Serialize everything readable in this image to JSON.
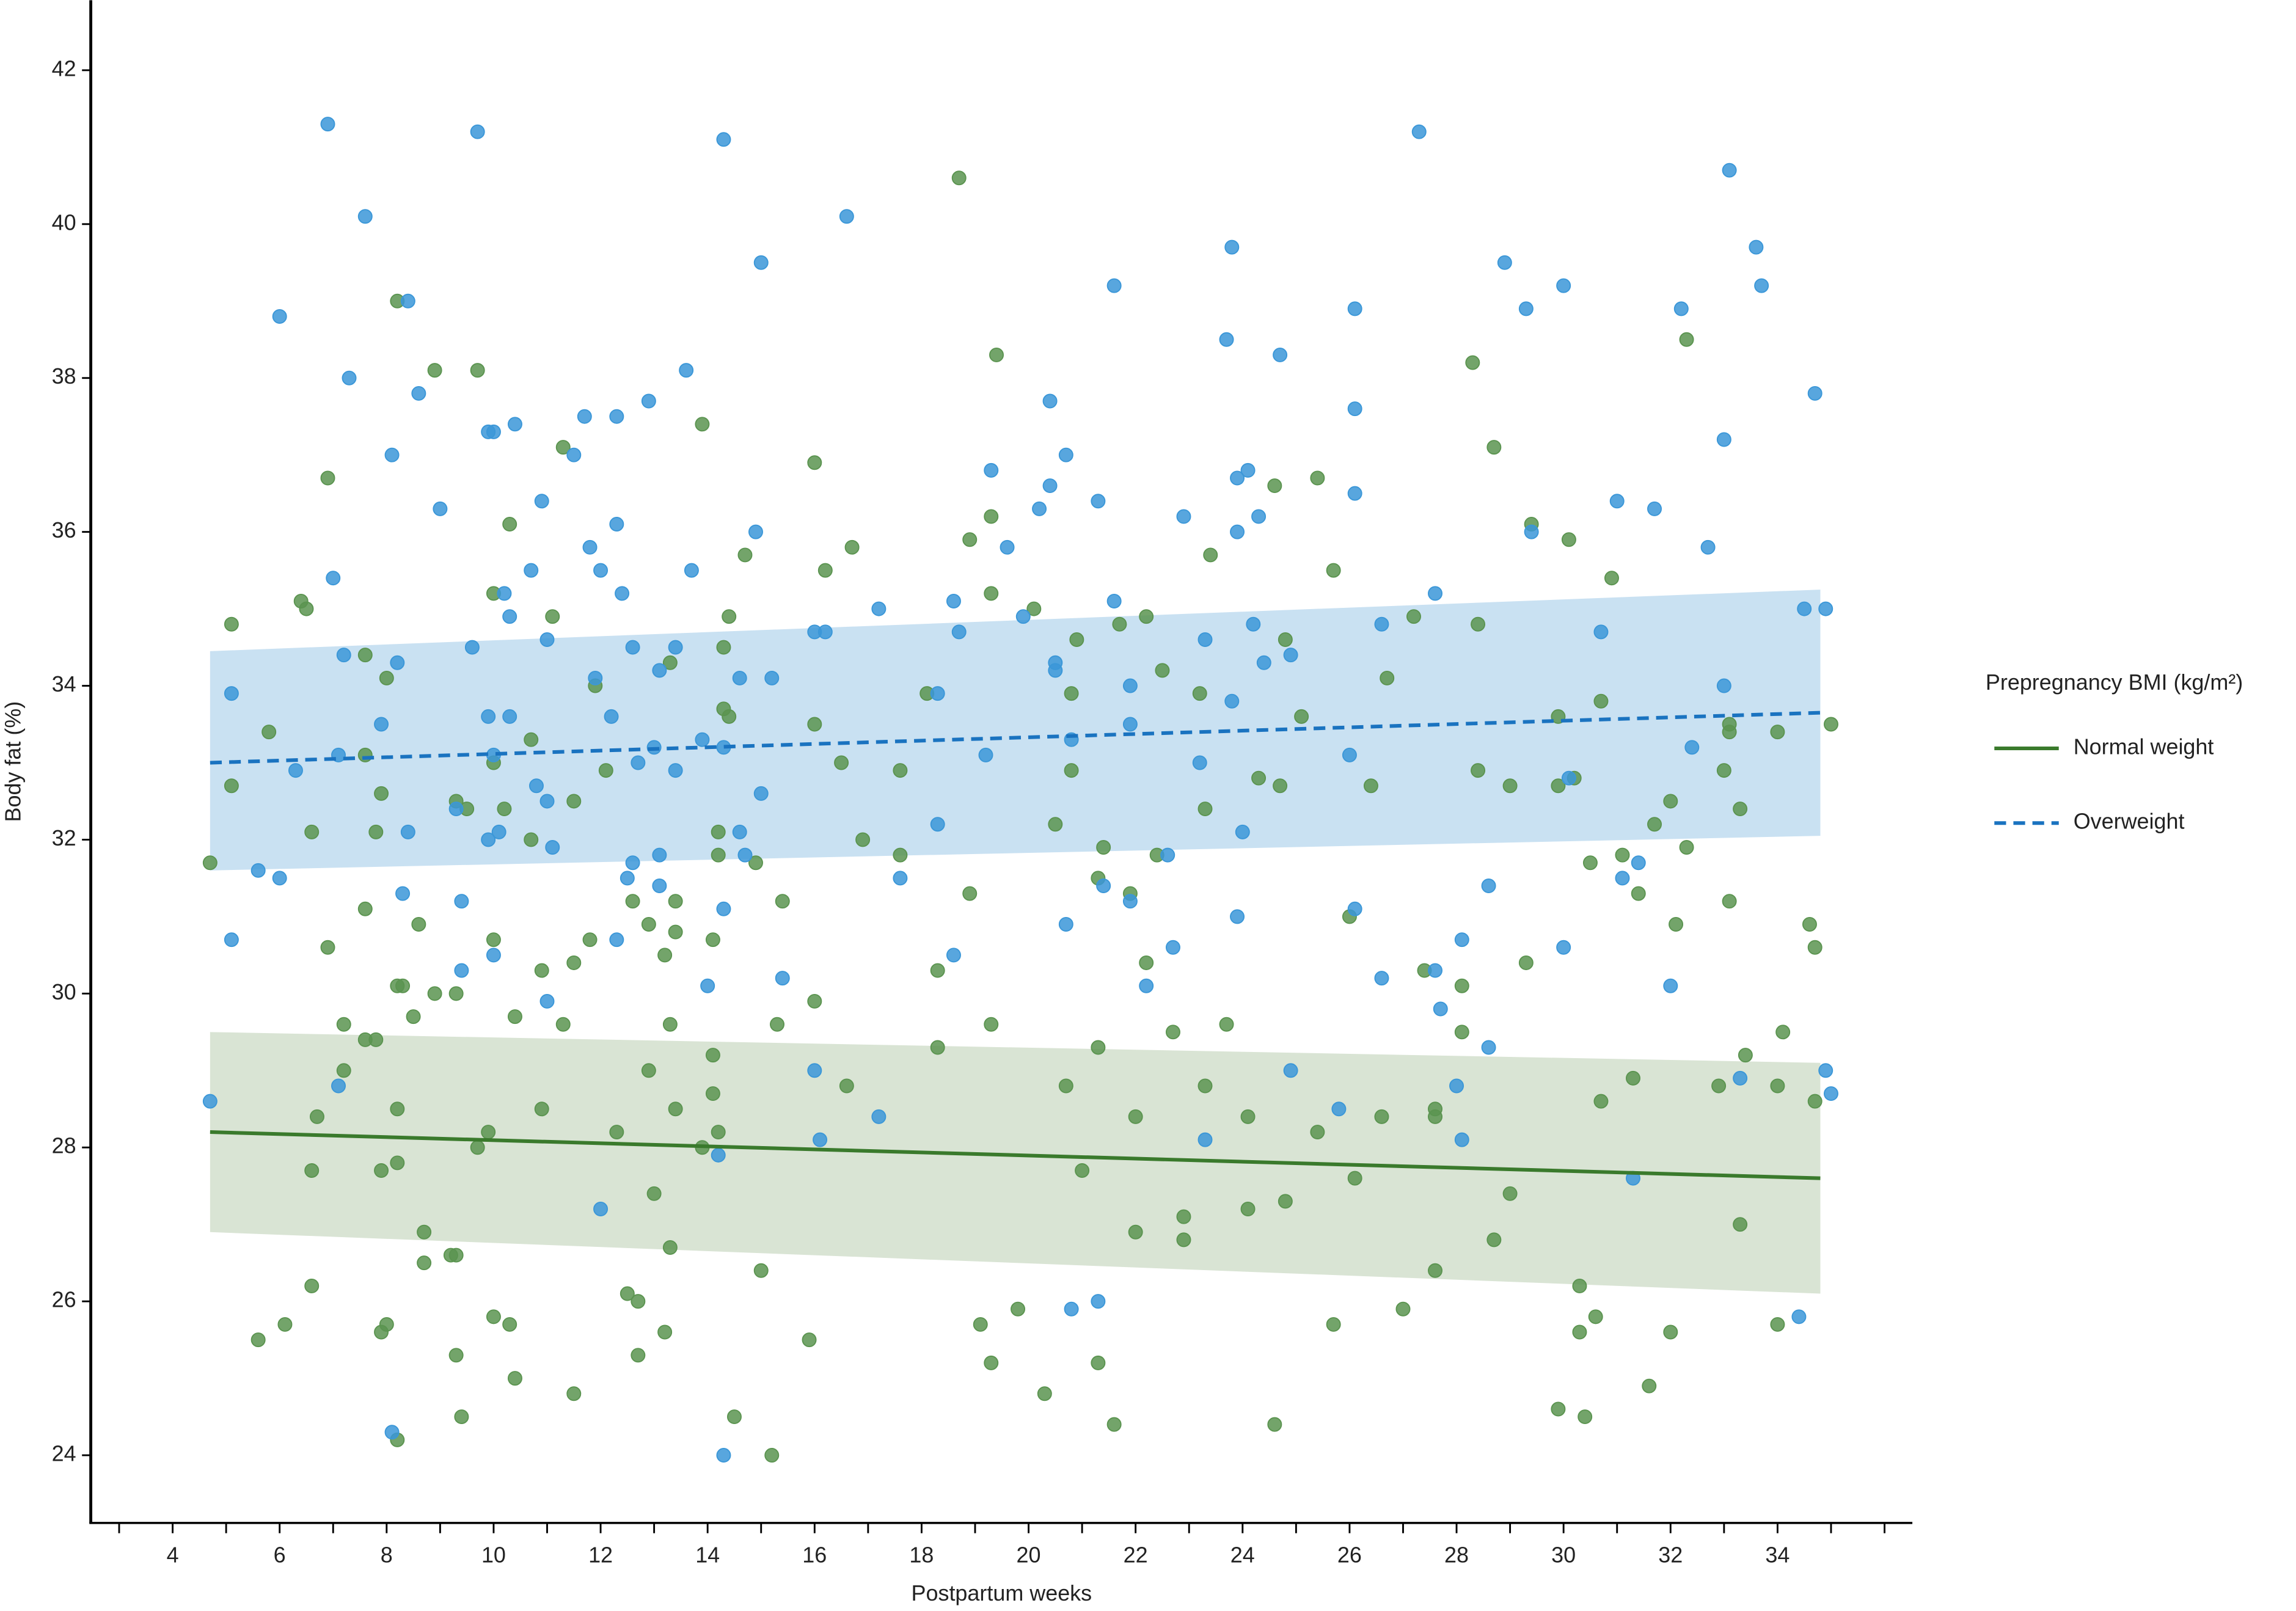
{
  "chart_data": {
    "type": "scatter",
    "x_label": "Postpartum weeks",
    "y_label": "Body fat (%)",
    "legend_title": "Prepregnancy BMI (kg/m²)",
    "legend": "right",
    "xlim": [
      2.47,
      36.52
    ],
    "ylim": [
      23.12,
      42.91
    ],
    "xticks": [
      4,
      6,
      8,
      10,
      12,
      14,
      16,
      18,
      20,
      22,
      24,
      26,
      28,
      30,
      32,
      34
    ],
    "xminorticks": [
      3,
      5,
      7,
      9,
      11,
      13,
      15,
      17,
      19,
      21,
      23,
      25,
      27,
      29,
      31,
      33,
      35,
      36
    ],
    "yticks": [
      24,
      26,
      28,
      30,
      32,
      34,
      36,
      38,
      40,
      42
    ],
    "series": [
      {
        "name": "Normal weight",
        "color": "#5b9450",
        "line_color": "#3a7a2c",
        "band_color": "#d9e4d4",
        "dashed": false,
        "x": [
          4.7,
          5.1,
          5.1,
          5.6,
          5.8,
          6.1,
          6.4,
          6.5,
          6.6,
          6.6,
          6.6,
          6.7,
          6.9,
          6.9,
          7.2,
          7.2,
          7.6,
          7.6,
          7.6,
          7.6,
          7.8,
          7.8,
          7.9,
          7.9,
          7.9,
          8.0,
          8.0,
          8.2,
          8.2,
          8.2,
          8.2,
          8.2,
          8.3,
          8.5,
          8.6,
          8.7,
          8.7,
          8.9,
          8.9,
          9.3,
          9.3,
          9.2,
          9.3,
          9.3,
          9.4,
          9.5,
          9.7,
          9.7,
          9.9,
          10.0,
          10.0,
          10.0,
          10.0,
          10.2,
          10.3,
          10.3,
          10.4,
          10.4,
          10.7,
          10.7,
          10.9,
          10.9,
          11.1,
          11.3,
          11.3,
          11.5,
          11.5,
          11.5,
          11.8,
          11.9,
          12.1,
          12.3,
          12.5,
          12.6,
          12.7,
          12.7,
          12.9,
          12.9,
          13.0,
          13.2,
          13.2,
          13.3,
          13.3,
          13.3,
          13.4,
          13.4,
          13.4,
          13.9,
          13.9,
          14.1,
          14.1,
          14.1,
          14.2,
          14.2,
          14.2,
          14.3,
          14.3,
          14.4,
          14.4,
          14.5,
          14.7,
          14.9,
          15.0,
          15.2,
          15.3,
          15.4,
          15.9,
          16.0,
          16.0,
          16.0,
          16.2,
          16.5,
          16.6,
          16.7,
          16.9,
          17.6,
          17.6,
          18.1,
          18.3,
          18.3,
          18.7,
          18.9,
          18.9,
          19.1,
          19.3,
          19.3,
          19.3,
          19.3,
          19.4,
          19.8,
          20.1,
          20.3,
          20.5,
          20.7,
          20.8,
          20.8,
          20.9,
          21.0,
          21.3,
          21.3,
          21.3,
          21.4,
          21.6,
          21.7,
          21.9,
          22.0,
          22.0,
          22.2,
          22.2,
          22.4,
          22.5,
          22.7,
          22.9,
          22.9,
          23.2,
          23.3,
          23.3,
          23.4,
          23.7,
          24.1,
          24.1,
          24.3,
          24.6,
          24.6,
          24.7,
          24.8,
          24.8,
          25.1,
          25.4,
          25.4,
          25.7,
          25.7,
          26.0,
          26.1,
          26.4,
          26.6,
          26.7,
          27.0,
          27.2,
          27.4,
          27.6,
          27.6,
          27.6,
          28.1,
          28.1,
          28.3,
          28.4,
          28.4,
          28.7,
          28.7,
          29.0,
          29.0,
          29.3,
          29.4,
          29.9,
          29.9,
          29.9,
          30.1,
          30.2,
          30.3,
          30.3,
          30.4,
          30.5,
          30.6,
          30.7,
          30.7,
          30.9,
          31.1,
          31.3,
          31.4,
          31.6,
          31.7,
          32.0,
          32.0,
          32.1,
          32.3,
          32.3,
          32.9,
          33.0,
          33.1,
          33.1,
          33.1,
          33.3,
          33.3,
          33.4,
          34.0,
          34.0,
          34.0,
          34.1,
          34.6,
          34.7,
          34.7,
          35.0
        ],
        "values": [
          31.7,
          34.8,
          32.7,
          25.5,
          33.4,
          25.7,
          35.1,
          35.0,
          27.7,
          26.2,
          32.1,
          28.4,
          36.7,
          30.6,
          29.6,
          29.0,
          34.4,
          33.1,
          31.1,
          29.4,
          29.4,
          32.1,
          32.6,
          27.7,
          25.6,
          34.1,
          25.7,
          39.0,
          30.1,
          28.5,
          27.8,
          24.2,
          30.1,
          29.7,
          30.9,
          26.9,
          26.5,
          38.1,
          30.0,
          32.5,
          30.0,
          26.6,
          26.6,
          25.3,
          24.5,
          32.4,
          38.1,
          28.0,
          28.2,
          35.2,
          33.0,
          30.7,
          25.8,
          32.4,
          36.1,
          25.7,
          29.7,
          25.0,
          33.3,
          32.0,
          30.3,
          28.5,
          34.9,
          37.1,
          29.6,
          32.5,
          30.4,
          24.8,
          30.7,
          34.0,
          32.9,
          28.2,
          26.1,
          31.2,
          26.0,
          25.3,
          30.9,
          29.0,
          27.4,
          30.5,
          25.6,
          34.3,
          29.6,
          26.7,
          31.2,
          30.8,
          28.5,
          28.0,
          37.4,
          30.7,
          29.2,
          28.7,
          32.1,
          31.8,
          28.2,
          34.5,
          33.7,
          34.9,
          33.6,
          24.5,
          35.7,
          31.7,
          26.4,
          24.0,
          29.6,
          31.2,
          25.5,
          36.9,
          33.5,
          29.9,
          35.5,
          33.0,
          28.8,
          35.8,
          32.0,
          32.9,
          31.8,
          33.9,
          30.3,
          29.3,
          40.6,
          35.9,
          31.3,
          25.7,
          36.2,
          35.2,
          29.6,
          25.2,
          38.3,
          25.9,
          35.0,
          24.8,
          32.2,
          28.8,
          33.9,
          32.9,
          34.6,
          27.7,
          31.5,
          29.3,
          25.2,
          31.9,
          24.4,
          34.8,
          31.3,
          28.4,
          26.9,
          34.9,
          30.4,
          31.8,
          34.2,
          29.5,
          27.1,
          26.8,
          33.9,
          32.4,
          28.8,
          35.7,
          29.6,
          28.4,
          27.2,
          32.8,
          36.6,
          24.4,
          32.7,
          34.6,
          27.3,
          33.6,
          36.7,
          28.2,
          35.5,
          25.7,
          31.0,
          27.6,
          32.7,
          28.4,
          34.1,
          25.9,
          34.9,
          30.3,
          28.5,
          28.4,
          26.4,
          30.1,
          29.5,
          38.2,
          34.8,
          32.9,
          37.1,
          26.8,
          32.7,
          27.4,
          30.4,
          36.1,
          33.6,
          32.7,
          24.6,
          35.9,
          32.8,
          26.2,
          25.6,
          24.5,
          31.7,
          25.8,
          33.8,
          28.6,
          35.4,
          31.8,
          28.9,
          31.3,
          24.9,
          32.2,
          32.5,
          25.6,
          30.9,
          38.5,
          31.9,
          28.8,
          32.9,
          33.5,
          33.4,
          31.2,
          32.4,
          27.0,
          29.2,
          33.4,
          28.8,
          25.7,
          29.5,
          30.9,
          30.6,
          28.6,
          33.5
        ],
        "fit": {
          "x": [
            4.7,
            34.8
          ],
          "values": [
            28.2,
            27.6
          ],
          "lower": [
            26.9,
            26.1
          ],
          "upper": [
            29.5,
            29.1
          ]
        }
      },
      {
        "name": "Overweight",
        "color": "#3b97d8",
        "line_color": "#1a73c0",
        "band_color": "#c9e1f2",
        "dashed": true,
        "x": [
          4.7,
          5.1,
          5.1,
          5.6,
          6.0,
          6.0,
          6.3,
          6.9,
          7.0,
          7.1,
          7.2,
          7.1,
          7.3,
          7.6,
          7.9,
          8.1,
          8.2,
          8.1,
          8.3,
          8.4,
          8.4,
          8.6,
          9.0,
          9.3,
          9.4,
          9.4,
          9.6,
          9.7,
          9.9,
          9.9,
          9.9,
          10.0,
          10.0,
          10.1,
          10.2,
          10.3,
          10.3,
          10.4,
          10.0,
          10.7,
          10.8,
          10.9,
          11.0,
          11.0,
          11.0,
          11.1,
          11.5,
          11.7,
          11.8,
          11.9,
          12.0,
          12.0,
          12.2,
          12.3,
          12.3,
          12.4,
          12.5,
          12.6,
          12.6,
          12.7,
          12.3,
          12.9,
          13.0,
          13.1,
          13.1,
          13.1,
          13.4,
          13.4,
          13.6,
          13.7,
          13.9,
          14.0,
          14.2,
          14.3,
          14.3,
          14.3,
          14.3,
          14.6,
          14.6,
          14.7,
          14.9,
          15.0,
          15.0,
          15.2,
          15.4,
          16.0,
          16.0,
          16.2,
          16.1,
          16.6,
          17.2,
          17.2,
          17.6,
          18.3,
          18.3,
          18.6,
          18.7,
          18.6,
          19.2,
          19.3,
          19.6,
          19.9,
          20.2,
          20.4,
          20.4,
          20.5,
          20.5,
          20.7,
          20.7,
          20.8,
          20.8,
          21.3,
          21.3,
          21.4,
          21.6,
          21.6,
          21.9,
          21.9,
          21.9,
          22.2,
          22.6,
          22.7,
          22.9,
          23.2,
          23.3,
          23.3,
          23.7,
          23.8,
          23.9,
          23.9,
          23.8,
          23.9,
          24.0,
          24.1,
          24.2,
          24.3,
          24.4,
          24.7,
          24.9,
          24.9,
          25.8,
          26.0,
          26.1,
          26.1,
          26.1,
          26.1,
          26.6,
          26.6,
          27.3,
          27.6,
          27.6,
          27.7,
          28.0,
          28.1,
          28.1,
          28.6,
          28.6,
          28.9,
          29.3,
          29.4,
          30.0,
          30.0,
          30.1,
          30.7,
          31.0,
          31.1,
          31.3,
          31.4,
          31.7,
          32.0,
          32.2,
          32.4,
          32.7,
          33.0,
          33.0,
          33.1,
          33.3,
          33.6,
          33.7,
          34.4,
          34.5,
          34.7,
          34.9,
          34.9,
          35.0
        ],
        "values": [
          28.6,
          33.9,
          30.7,
          31.6,
          38.8,
          31.5,
          32.9,
          41.3,
          35.4,
          33.1,
          34.4,
          28.8,
          38.0,
          40.1,
          33.5,
          37.0,
          34.3,
          24.3,
          31.3,
          39.0,
          32.1,
          37.8,
          36.3,
          32.4,
          31.2,
          30.3,
          34.5,
          41.2,
          37.3,
          33.6,
          32.0,
          37.3,
          33.1,
          32.1,
          35.2,
          33.6,
          34.9,
          37.4,
          30.5,
          35.5,
          32.7,
          36.4,
          34.6,
          32.5,
          29.9,
          31.9,
          37.0,
          37.5,
          35.8,
          34.1,
          35.5,
          27.2,
          33.6,
          37.5,
          36.1,
          35.2,
          31.5,
          34.5,
          31.7,
          33.0,
          30.7,
          37.7,
          33.2,
          34.2,
          31.8,
          31.4,
          34.5,
          32.9,
          38.1,
          35.5,
          33.3,
          30.1,
          27.9,
          41.1,
          33.2,
          31.1,
          24.0,
          34.1,
          32.1,
          31.8,
          36.0,
          39.5,
          32.6,
          34.1,
          30.2,
          34.7,
          29.0,
          34.7,
          28.1,
          40.1,
          35.0,
          28.4,
          31.5,
          33.9,
          32.2,
          35.1,
          34.7,
          30.5,
          33.1,
          36.8,
          35.8,
          34.9,
          36.3,
          37.7,
          36.6,
          34.3,
          34.2,
          37.0,
          30.9,
          33.3,
          25.9,
          36.4,
          26.0,
          31.4,
          39.2,
          35.1,
          34.0,
          33.5,
          31.2,
          30.1,
          31.8,
          30.6,
          36.2,
          33.0,
          34.6,
          28.1,
          38.5,
          39.7,
          36.7,
          36.0,
          33.8,
          31.0,
          32.1,
          36.8,
          34.8,
          36.2,
          34.3,
          38.3,
          34.4,
          29.0,
          28.5,
          33.1,
          38.9,
          37.6,
          36.5,
          31.1,
          34.8,
          30.2,
          41.2,
          35.2,
          30.3,
          29.8,
          28.8,
          30.7,
          28.1,
          31.4,
          29.3,
          39.5,
          38.9,
          36.0,
          39.2,
          30.6,
          32.8,
          34.7,
          36.4,
          31.5,
          27.6,
          31.7,
          36.3,
          30.1,
          38.9,
          33.2,
          35.8,
          37.2,
          34.0,
          40.7,
          28.9,
          39.7,
          39.2,
          25.8,
          35.0,
          37.8,
          35.0,
          29.0,
          28.7
        ],
        "fit": {
          "x": [
            4.7,
            34.8
          ],
          "values": [
            33.0,
            33.65
          ],
          "lower": [
            31.6,
            32.05
          ],
          "upper": [
            34.45,
            35.25
          ]
        }
      }
    ]
  }
}
